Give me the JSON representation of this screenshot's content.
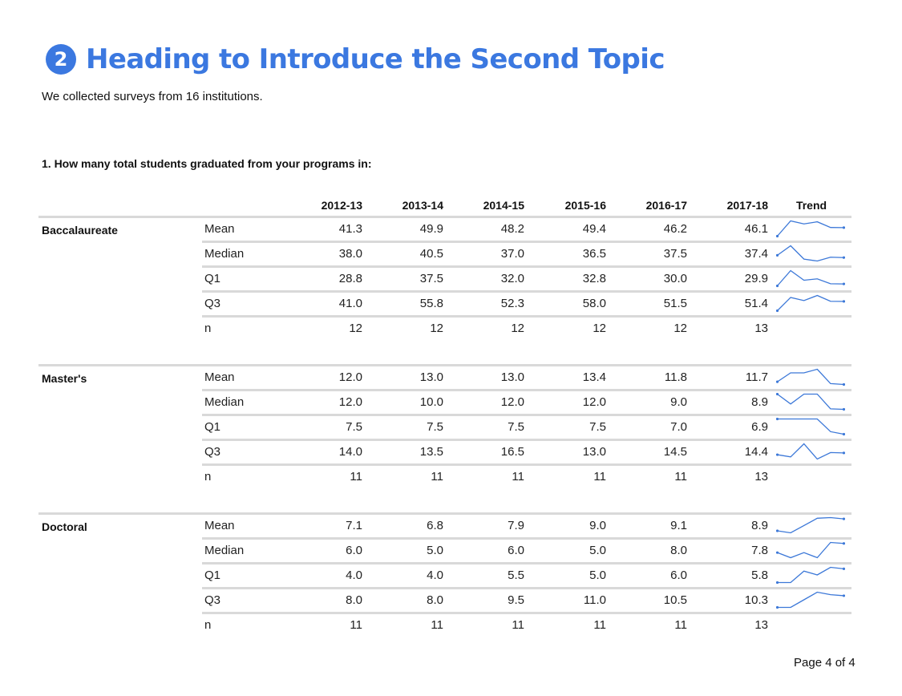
{
  "heading": {
    "number": "2",
    "title": "Heading to Introduce the Second Topic",
    "color": "#3b78e0"
  },
  "intro": "We collected surveys from 16 institutions.",
  "question": "1. How many total students graduated from your programs in:",
  "table": {
    "columns": [
      "2012-13",
      "2013-14",
      "2014-15",
      "2015-16",
      "2016-17",
      "2017-18"
    ],
    "trend_label": "Trend",
    "groups": [
      {
        "label": "Baccalaureate",
        "rows": [
          {
            "stat": "Mean",
            "values": [
              "41.3",
              "49.9",
              "48.2",
              "49.4",
              "46.2",
              "46.1"
            ]
          },
          {
            "stat": "Median",
            "values": [
              "38.0",
              "40.5",
              "37.0",
              "36.5",
              "37.5",
              "37.4"
            ]
          },
          {
            "stat": "Q1",
            "values": [
              "28.8",
              "37.5",
              "32.0",
              "32.8",
              "30.0",
              "29.9"
            ]
          },
          {
            "stat": "Q3",
            "values": [
              "41.0",
              "55.8",
              "52.3",
              "58.0",
              "51.5",
              "51.4"
            ]
          },
          {
            "stat": "n",
            "values": [
              "12",
              "12",
              "12",
              "12",
              "12",
              "13"
            ]
          }
        ]
      },
      {
        "label": "Master's",
        "rows": [
          {
            "stat": "Mean",
            "values": [
              "12.0",
              "13.0",
              "13.0",
              "13.4",
              "11.8",
              "11.7"
            ]
          },
          {
            "stat": "Median",
            "values": [
              "12.0",
              "10.0",
              "12.0",
              "12.0",
              "9.0",
              "8.9"
            ]
          },
          {
            "stat": "Q1",
            "values": [
              "7.5",
              "7.5",
              "7.5",
              "7.5",
              "7.0",
              "6.9"
            ]
          },
          {
            "stat": "Q3",
            "values": [
              "14.0",
              "13.5",
              "16.5",
              "13.0",
              "14.5",
              "14.4"
            ]
          },
          {
            "stat": "n",
            "values": [
              "11",
              "11",
              "11",
              "11",
              "11",
              "13"
            ]
          }
        ]
      },
      {
        "label": "Doctoral",
        "rows": [
          {
            "stat": "Mean",
            "values": [
              "7.1",
              "6.8",
              "7.9",
              "9.0",
              "9.1",
              "8.9"
            ]
          },
          {
            "stat": "Median",
            "values": [
              "6.0",
              "5.0",
              "6.0",
              "5.0",
              "8.0",
              "7.8"
            ]
          },
          {
            "stat": "Q1",
            "values": [
              "4.0",
              "4.0",
              "5.5",
              "5.0",
              "6.0",
              "5.8"
            ]
          },
          {
            "stat": "Q3",
            "values": [
              "8.0",
              "8.0",
              "9.5",
              "11.0",
              "10.5",
              "10.3"
            ]
          },
          {
            "stat": "n",
            "values": [
              "11",
              "11",
              "11",
              "11",
              "11",
              "13"
            ]
          }
        ]
      }
    ],
    "sparkline_color": "#3c78d8"
  },
  "footer": {
    "page_label": "Page 4 of 4"
  }
}
